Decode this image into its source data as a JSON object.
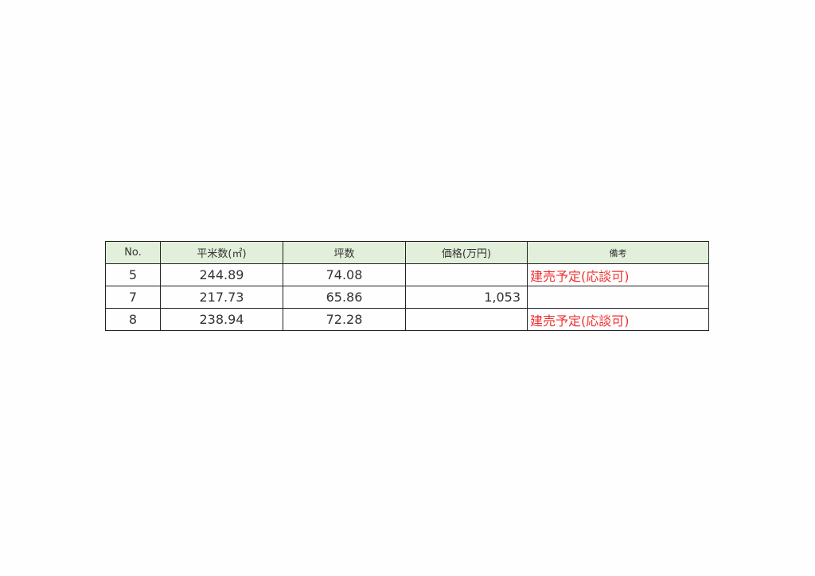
{
  "table": {
    "headers": [
      "No.",
      "平米数(㎡)",
      "坪数",
      "価格(万円)",
      "備考"
    ],
    "rows": [
      {
        "no": "5",
        "sqm": "244.89",
        "tsubo": "74.08",
        "price": "",
        "note": "建売予定(応談可)"
      },
      {
        "no": "7",
        "sqm": "217.73",
        "tsubo": "65.86",
        "price": "1,053",
        "note": ""
      },
      {
        "no": "8",
        "sqm": "238.94",
        "tsubo": "72.28",
        "price": "",
        "note": "建売予定(応談可)"
      }
    ],
    "header_bg": "#e2efda",
    "note_color": "#f03030"
  }
}
